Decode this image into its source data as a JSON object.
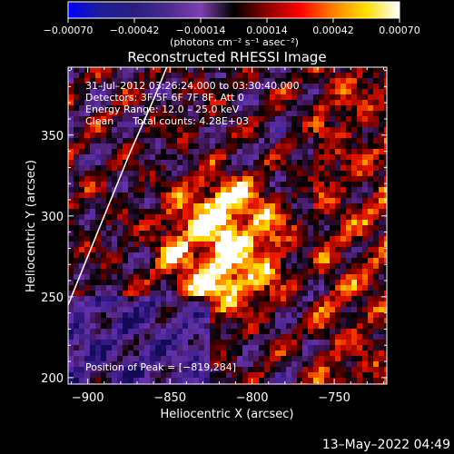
{
  "chart_data": {
    "type": "heatmap",
    "title": "Reconstructed RHESSI Image",
    "xlabel": "Heliocentric X (arcsec)",
    "ylabel": "Heliocentric Y (arcsec)",
    "xlim": [
      -912,
      -718
    ],
    "ylim": [
      196,
      392
    ],
    "x_ticks": [
      -900,
      -850,
      -800,
      -750
    ],
    "x_tick_labels": [
      "−900",
      "−850",
      "−800",
      "−750"
    ],
    "y_ticks": [
      200,
      250,
      300,
      350
    ],
    "y_tick_labels": [
      "200",
      "250",
      "300",
      "350"
    ],
    "colorbar": {
      "min": -0.0007,
      "max": 0.0007,
      "ticks": [
        -0.0007,
        -0.00042,
        -0.00014,
        0.00014,
        0.00042,
        0.0007
      ],
      "tick_labels": [
        "−0.00070",
        "−0.00042",
        "−0.00014",
        "0.00014",
        "0.00042",
        "0.00070"
      ],
      "units": "(photons cm⁻² s⁻¹ asec⁻²)",
      "colors": [
        "#0000ff",
        "#1e1e96",
        "#2a1f80",
        "#4a2a8f",
        "#7f3fb0",
        "#000000",
        "#8b0000",
        "#ff0000",
        "#ff7f00",
        "#ffe000",
        "#ffffff"
      ]
    },
    "annotations": [
      "31–Jul–2012 03:26:24.000 to 03:30:40.000",
      "Detectors: 3F 5F 6F 7F 8F, Att 0",
      "Energy Range: 12.0 – 25.0 keV",
      "Clean      Total counts: 4.28E+03"
    ],
    "peak_label": "Position of Peak = [−819,284]",
    "peak": {
      "x": -819,
      "y": 284
    },
    "grid": false,
    "limb": [
      {
        "x": -914,
        "y": 240
      },
      {
        "x": -900,
        "y": 275
      },
      {
        "x": -888,
        "y": 305
      },
      {
        "x": -874,
        "y": 340
      },
      {
        "x": -860,
        "y": 372
      },
      {
        "x": -852,
        "y": 392
      }
    ]
  },
  "footer": {
    "timestamp": "13–May–2022 04:49"
  }
}
